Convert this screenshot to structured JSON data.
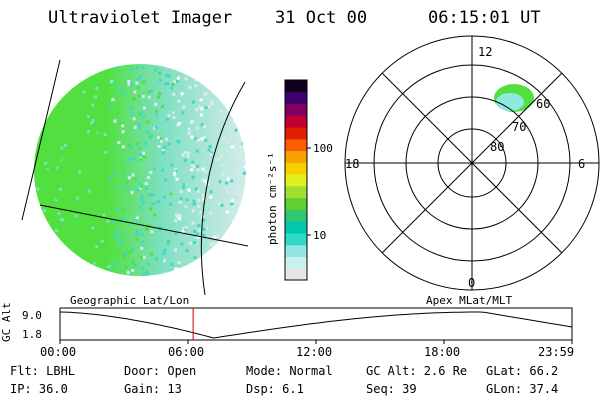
{
  "header": {
    "instrument": "Ultraviolet Imager",
    "date": "31 Oct 00",
    "time": "06:15:01 UT"
  },
  "colorbar": {
    "unit_label": "photon cm⁻²s⁻¹",
    "tick_100": "100",
    "tick_10": "10",
    "colors": [
      "#e6e6e6",
      "#c8f0f0",
      "#90e8e0",
      "#30d8c8",
      "#00c8b0",
      "#30c870",
      "#60d030",
      "#a0e030",
      "#e0f020",
      "#f8d000",
      "#f8a000",
      "#f86000",
      "#e02000",
      "#c00030",
      "#800060",
      "#400070",
      "#100020"
    ]
  },
  "globe": {
    "projection_label": "Geographic Lat/Lon",
    "colors": {
      "green": "#52e040",
      "teal": "#40d8c8",
      "light": "#d8ecec",
      "mid": "#7ee0c0"
    }
  },
  "polar": {
    "projection_label": "Apex MLat/MLT",
    "mlt_top": "12",
    "mlt_left": "18",
    "mlt_right": "6",
    "mlt_bottom": "0",
    "lat_60": "60",
    "lat_70": "70",
    "lat_80": "80"
  },
  "timeline": {
    "y_label": "GC Alt",
    "y_top": "9.0",
    "y_bottom": "1.8",
    "ticks": [
      "00:00",
      "06:00",
      "12:00",
      "18:00",
      "23:59"
    ],
    "current_fraction": 0.26,
    "marker_color": "#cc0000"
  },
  "info": {
    "flt": "Flt: LBHL",
    "door": "Door: Open",
    "mode": "Mode: Normal",
    "gc_alt": "GC Alt: 2.6 Re",
    "glat": "GLat:  66.2",
    "ip": "IP: 36.0",
    "gain": "Gain: 13",
    "dsp": "Dsp:      6.1",
    "seq": "Seq: 39",
    "glon": "GLon:  37.4"
  }
}
